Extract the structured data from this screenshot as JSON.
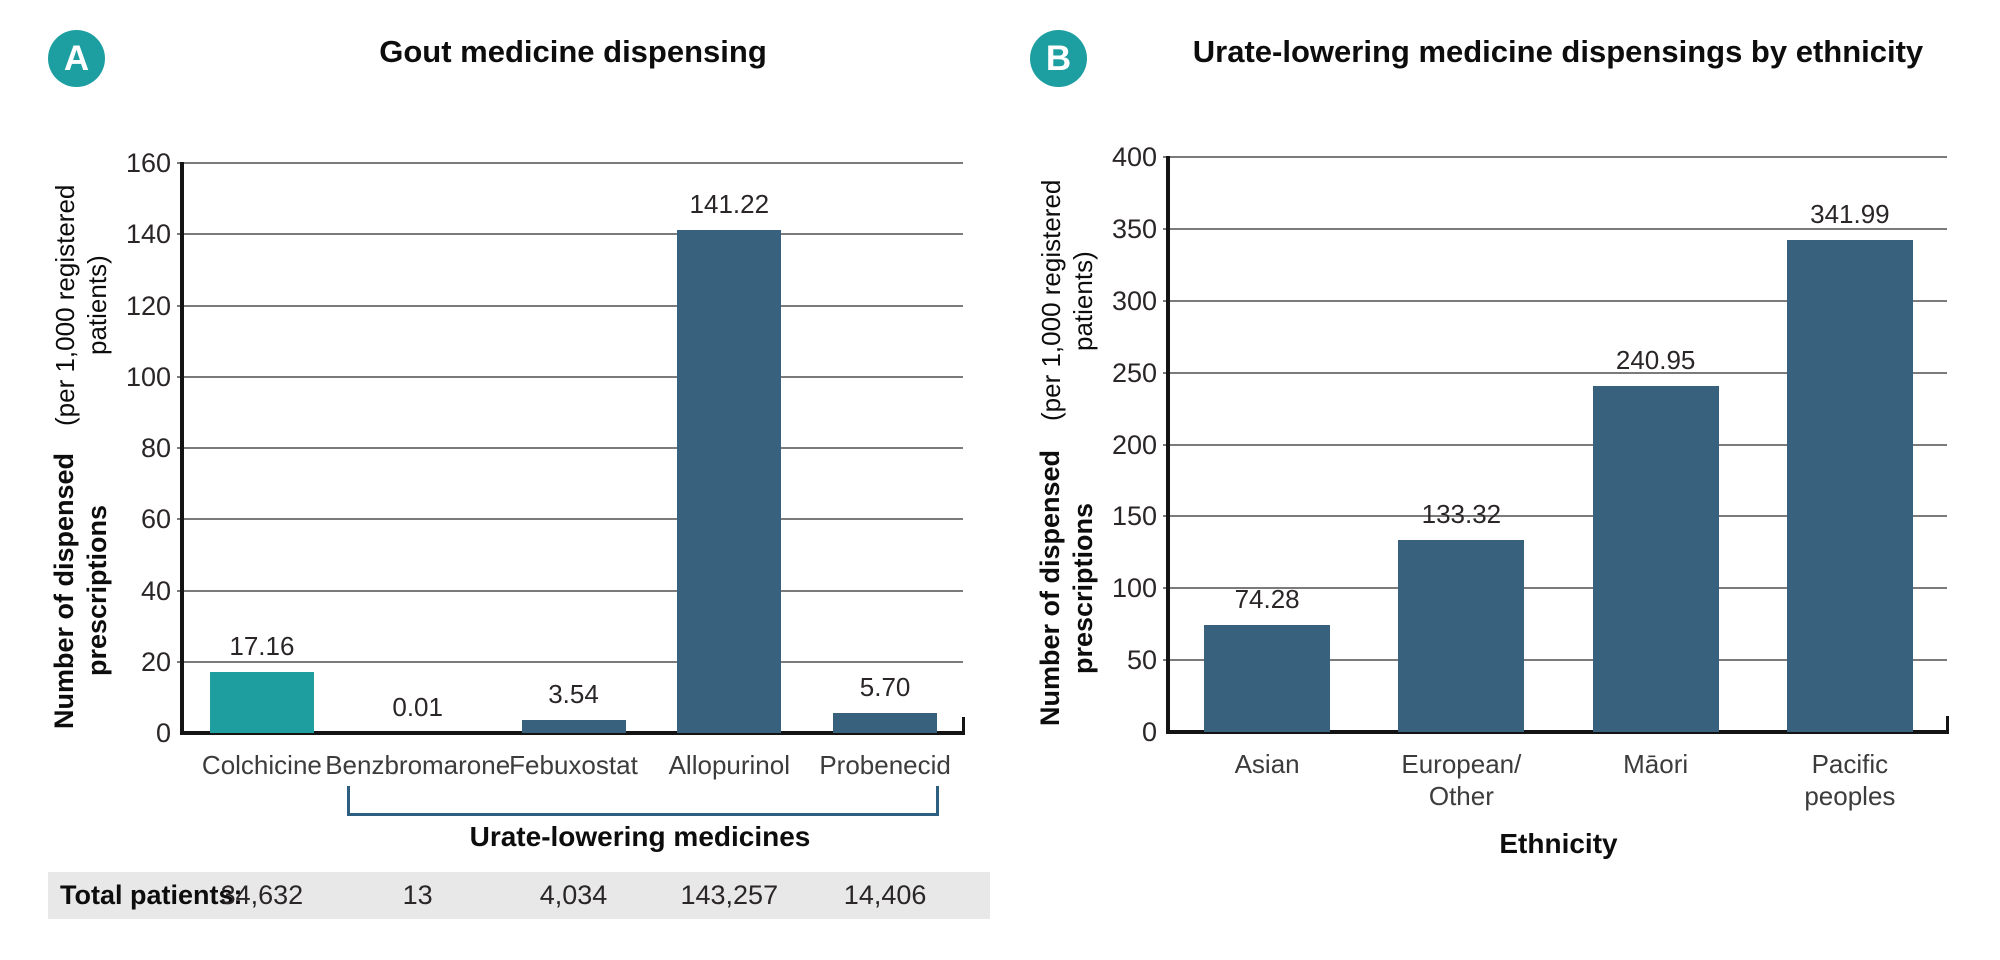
{
  "colors": {
    "accent_teal": "#1f9e9f",
    "bar_blue": "#38617d",
    "bracket_blue": "#2e5f80",
    "gridline_gray": "#7b7b7b",
    "totals_strip_gray": "#e8e8e8"
  },
  "chart_data": [
    {
      "type": "bar",
      "panel_badge": "A",
      "title": "Gout medicine dispensing",
      "ylabel_line1": "Number of dispensed prescriptions",
      "ylabel_line2": "(per 1,000 registered patients)",
      "xlabel": "",
      "categories": [
        "Colchicine",
        "Benzbromarone",
        "Febuxostat",
        "Allopurinol",
        "Probenecid"
      ],
      "values": [
        17.16,
        0.01,
        3.54,
        141.22,
        5.7
      ],
      "value_labels": [
        "17.16",
        "0.01",
        "3.54",
        "141.22",
        "5.70"
      ],
      "bar_colors": [
        "#1f9e9f",
        "#38617d",
        "#38617d",
        "#38617d",
        "#38617d"
      ],
      "ylim": [
        0,
        160
      ],
      "yticks": [
        0,
        20,
        40,
        60,
        80,
        100,
        120,
        140,
        160
      ],
      "grid": true,
      "legend": "none",
      "group_bracket": {
        "from_index": 1,
        "to_index": 4,
        "label": "Urate-lowering medicines"
      },
      "totals_row": {
        "label": "Total patients:",
        "values": [
          "34,632",
          "13",
          "4,034",
          "143,257",
          "14,406"
        ]
      }
    },
    {
      "type": "bar",
      "panel_badge": "B",
      "title": "Urate-lowering medicine dispensings by ethnicity",
      "ylabel_line1": "Number of dispensed prescriptions",
      "ylabel_line2": "(per 1,000 registered patients)",
      "xlabel": "Ethnicity",
      "categories": [
        "Asian",
        "European/\nOther",
        "Māori",
        "Pacific\npeoples"
      ],
      "values": [
        74.28,
        133.32,
        240.95,
        341.99
      ],
      "value_labels": [
        "74.28",
        "133.32",
        "240.95",
        "341.99"
      ],
      "bar_colors": [
        "#38617d",
        "#38617d",
        "#38617d",
        "#38617d"
      ],
      "ylim": [
        0,
        400
      ],
      "yticks": [
        0,
        50,
        100,
        150,
        200,
        250,
        300,
        350,
        400
      ],
      "grid": true,
      "legend": "none"
    }
  ]
}
